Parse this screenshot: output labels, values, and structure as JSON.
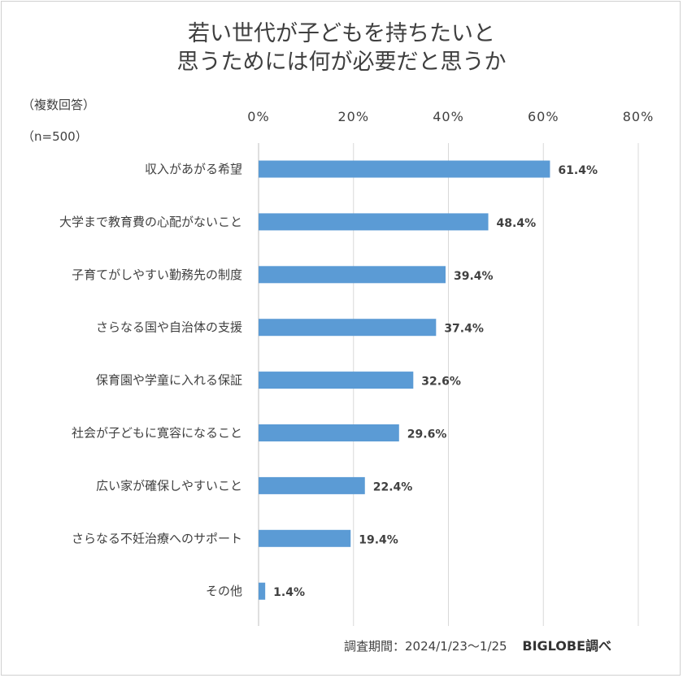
{
  "chart_data": {
    "type": "bar",
    "orientation": "horizontal",
    "title_lines": [
      "若い世代が子どもを持ちたいと",
      "思うためには何が必要だと思うか"
    ],
    "note_lines": [
      "（複数回答）",
      "（n=500）"
    ],
    "categories": [
      "収入があがる希望",
      "大学まで教育費の心配がないこと",
      "子育てがしやすい勤務先の制度",
      "さらなる国や自治体の支援",
      "保育園や学童に入れる保証",
      "社会が子どもに寛容になること",
      "広い家が確保しやすいこと",
      "さらなる不妊治療へのサポート",
      "その他"
    ],
    "values": [
      61.4,
      48.4,
      39.4,
      37.4,
      32.6,
      29.6,
      22.4,
      19.4,
      1.4
    ],
    "value_labels": [
      "61.4%",
      "48.4%",
      "39.4%",
      "37.4%",
      "32.6%",
      "29.6%",
      "22.4%",
      "19.4%",
      "1.4%"
    ],
    "xlim": [
      0,
      80
    ],
    "ticks": [
      0,
      20,
      40,
      60,
      80
    ],
    "tick_labels": [
      "0%",
      "20%",
      "40%",
      "60%",
      "80%"
    ],
    "axis_position": "top",
    "grid": true,
    "bar_color": "#5b9bd5"
  },
  "footer": {
    "survey_period": "調査期間：2024/1/23～1/25",
    "brand": "BIGLOBE調べ"
  }
}
